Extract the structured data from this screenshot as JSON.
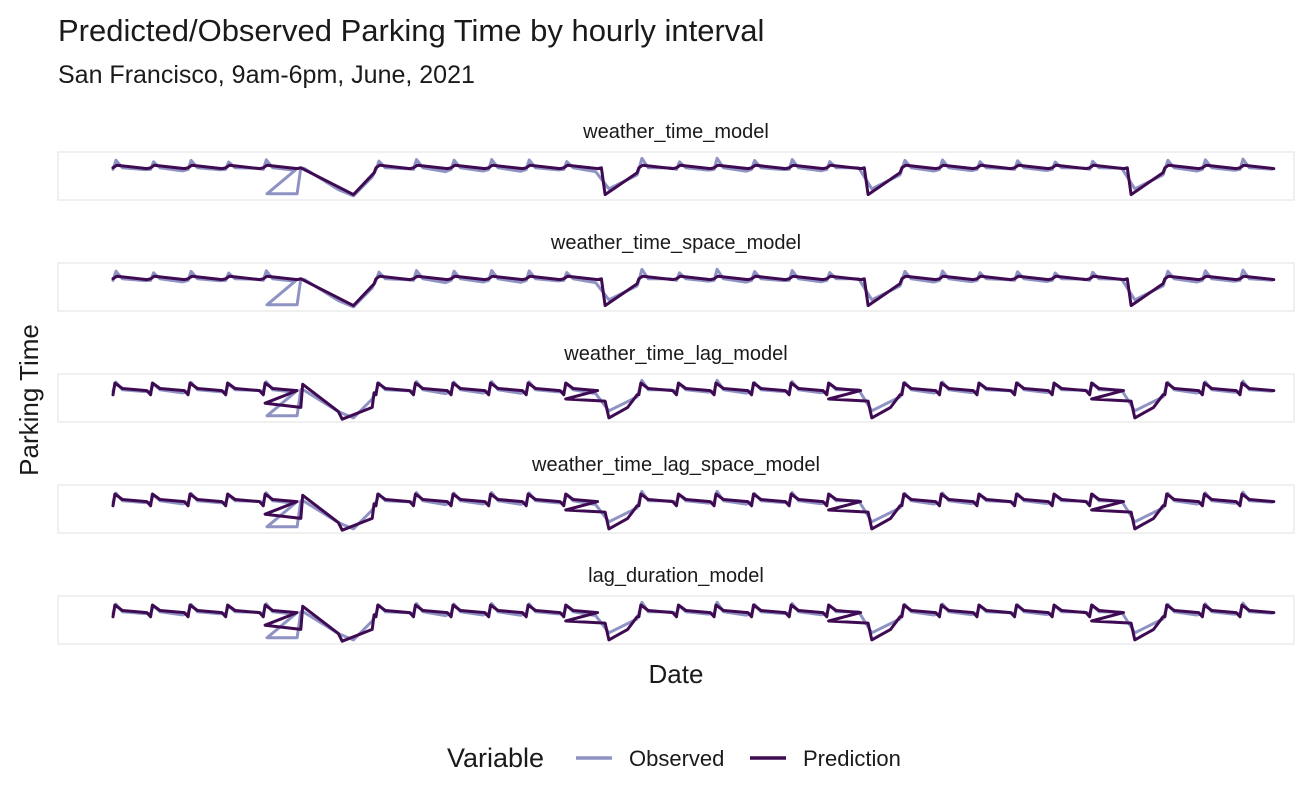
{
  "chart_data": {
    "type": "line",
    "title": "Predicted/Observed Parking Time by hourly interval",
    "subtitle": "San Francisco, 9am-6pm, June, 2021",
    "xlabel": "Date",
    "ylabel": "Parking Time",
    "x_tick_labels_shown": false,
    "y_tick_labels_shown": false,
    "grid": false,
    "legend": {
      "title": "Variable",
      "position": "bottom",
      "entries": [
        {
          "name": "Observed",
          "color": "#8f93c4"
        },
        {
          "name": "Prediction",
          "color": "#3e0a52"
        }
      ]
    },
    "panels": [
      {
        "name": "weather_time_model",
        "model": "smooth"
      },
      {
        "name": "weather_time_space_model",
        "model": "smooth"
      },
      {
        "name": "weather_time_lag_model",
        "model": "lag"
      },
      {
        "name": "weather_time_lag_space_model",
        "model": "lag"
      },
      {
        "name": "lag_duration_model",
        "model": "lag"
      }
    ],
    "observed_events": [
      [
        0,
        1
      ],
      [
        1,
        1
      ],
      [
        2,
        1
      ],
      [
        3,
        1
      ],
      [
        4,
        0
      ],
      [
        7,
        1
      ],
      [
        8,
        1
      ],
      [
        9,
        1
      ],
      [
        10,
        1
      ],
      [
        11,
        1
      ],
      [
        12,
        1
      ],
      [
        14,
        1
      ],
      [
        15,
        1
      ],
      [
        16,
        1
      ],
      [
        17,
        1
      ],
      [
        18,
        1
      ],
      [
        19,
        1
      ],
      [
        20,
        1
      ],
      [
        21,
        1
      ],
      [
        22,
        1
      ],
      [
        23,
        1
      ],
      [
        24,
        1
      ],
      [
        25,
        1
      ],
      [
        26,
        1
      ],
      [
        28,
        1
      ],
      [
        29,
        1
      ],
      [
        30,
        1
      ]
    ],
    "gaps": [
      {
        "from": 4,
        "to": 7,
        "type": "dip_low"
      },
      {
        "from": 12,
        "to": 14,
        "type": "v"
      },
      {
        "from": 19,
        "to": 21,
        "type": "v"
      },
      {
        "from": 26,
        "to": 28,
        "type": "v"
      }
    ],
    "n_days": 30
  }
}
